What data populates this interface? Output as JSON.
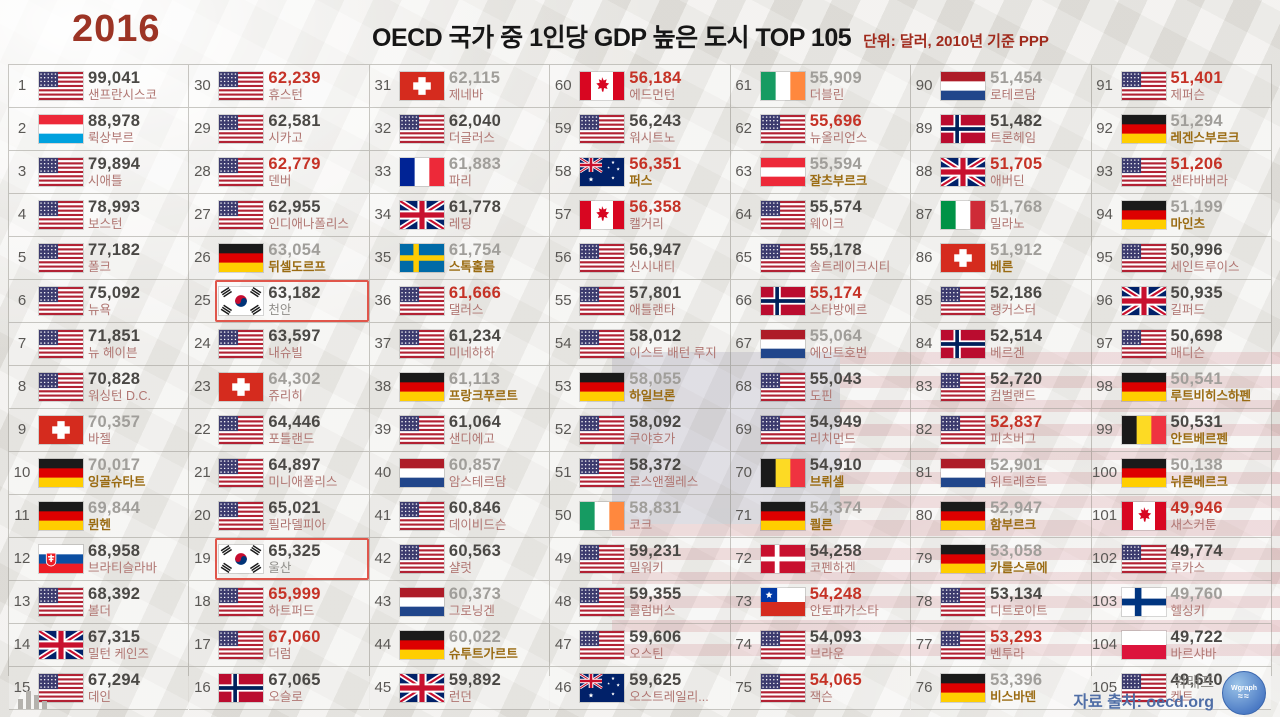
{
  "header": {
    "year": "2016",
    "title": "OECD 국가 중 1인당 GDP 높은 도시 TOP 105",
    "unit": "단위: 달러, 2010년 기준 PPP"
  },
  "footer": {
    "brand": "워래프",
    "source": "자료 출처: oecd.org",
    "logo_text": "Wgraph",
    "chart_icon": "bar-chart-icon"
  },
  "colors": {
    "accent_red": "#c53226",
    "value_dark": "#4a4845",
    "value_gray": "#a09e9a",
    "city_rose": "#b07672",
    "city_bold_gold": "#9a6b12",
    "highlight_box": "#e0564b",
    "year_red": "#9c3425",
    "source_blue": "#4f6ea6"
  },
  "chart_data": {
    "type": "table",
    "title": "OECD 국가 중 1인당 GDP 높은 도시 TOP 105",
    "unit": "단위: 달러, 2010년 기준 PPP",
    "year": "2016",
    "value_color_legend": {
      "dark": "normal",
      "red": "highlighted red",
      "gray": "light gray"
    },
    "columns": [
      [
        {
          "rank": 1,
          "country": "us",
          "value": "99,041",
          "city": "샌프란시스코",
          "value_color": "dark"
        },
        {
          "rank": 2,
          "country": "lu",
          "value": "88,978",
          "city": "뤽상부르",
          "value_color": "dark"
        },
        {
          "rank": 3,
          "country": "us",
          "value": "79,894",
          "city": "시애틀",
          "value_color": "dark"
        },
        {
          "rank": 4,
          "country": "us",
          "value": "78,993",
          "city": "보스턴",
          "value_color": "dark"
        },
        {
          "rank": 5,
          "country": "us",
          "value": "77,182",
          "city": "폴크",
          "value_color": "dark"
        },
        {
          "rank": 6,
          "country": "us",
          "value": "75,092",
          "city": "뉴욕",
          "value_color": "dark"
        },
        {
          "rank": 7,
          "country": "us",
          "value": "71,851",
          "city": "뉴 헤이븐",
          "value_color": "dark"
        },
        {
          "rank": 8,
          "country": "us",
          "value": "70,828",
          "city": "워싱턴 D.C.",
          "value_color": "dark"
        },
        {
          "rank": 9,
          "country": "ch",
          "value": "70,357",
          "city": "바젤",
          "value_color": "gray"
        },
        {
          "rank": 10,
          "country": "de",
          "value": "70,017",
          "city": "잉골슈타트",
          "value_color": "gray",
          "city_bold": true
        },
        {
          "rank": 11,
          "country": "de",
          "value": "69,844",
          "city": "뮌헨",
          "value_color": "gray",
          "city_bold": true
        },
        {
          "rank": 12,
          "country": "sk",
          "value": "68,958",
          "city": "브라티슬라바",
          "value_color": "dark"
        },
        {
          "rank": 13,
          "country": "us",
          "value": "68,392",
          "city": "볼더",
          "value_color": "dark"
        },
        {
          "rank": 14,
          "country": "gb",
          "value": "67,315",
          "city": "밀턴 케인즈",
          "value_color": "dark"
        },
        {
          "rank": 15,
          "country": "us",
          "value": "67,294",
          "city": "데인",
          "value_color": "dark"
        }
      ],
      [
        {
          "rank": 30,
          "country": "us",
          "value": "62,239",
          "city": "휴스턴",
          "value_color": "red"
        },
        {
          "rank": 29,
          "country": "us",
          "value": "62,581",
          "city": "시카고",
          "value_color": "dark"
        },
        {
          "rank": 28,
          "country": "us",
          "value": "62,779",
          "city": "덴버",
          "value_color": "red"
        },
        {
          "rank": 27,
          "country": "us",
          "value": "62,955",
          "city": "인디애나폴리스",
          "value_color": "dark"
        },
        {
          "rank": 26,
          "country": "de",
          "value": "63,054",
          "city": "뒤셀도르프",
          "value_color": "gray",
          "city_bold": true
        },
        {
          "rank": 25,
          "country": "kr",
          "value": "63,182",
          "city": "천안",
          "value_color": "dark",
          "city_gray": true,
          "highlight": true
        },
        {
          "rank": 24,
          "country": "us",
          "value": "63,597",
          "city": "내슈빌",
          "value_color": "dark"
        },
        {
          "rank": 23,
          "country": "ch",
          "value": "64,302",
          "city": "쥬리히",
          "value_color": "gray"
        },
        {
          "rank": 22,
          "country": "us",
          "value": "64,446",
          "city": "포틀랜드",
          "value_color": "dark"
        },
        {
          "rank": 21,
          "country": "us",
          "value": "64,897",
          "city": "미니애폴리스",
          "value_color": "dark"
        },
        {
          "rank": 20,
          "country": "us",
          "value": "65,021",
          "city": "필라델피아",
          "value_color": "dark"
        },
        {
          "rank": 19,
          "country": "kr",
          "value": "65,325",
          "city": "울산",
          "value_color": "dark",
          "city_gray": true,
          "highlight": true
        },
        {
          "rank": 18,
          "country": "us",
          "value": "65,999",
          "city": "하트퍼드",
          "value_color": "red"
        },
        {
          "rank": 17,
          "country": "us",
          "value": "67,060",
          "city": "더럼",
          "value_color": "red"
        },
        {
          "rank": 16,
          "country": "no",
          "value": "67,065",
          "city": "오슬로",
          "value_color": "dark"
        }
      ],
      [
        {
          "rank": 31,
          "country": "ch",
          "value": "62,115",
          "city": "제네바",
          "value_color": "gray"
        },
        {
          "rank": 32,
          "country": "us",
          "value": "62,040",
          "city": "더글러스",
          "value_color": "dark"
        },
        {
          "rank": 33,
          "country": "fr",
          "value": "61,883",
          "city": "파리",
          "value_color": "gray"
        },
        {
          "rank": 34,
          "country": "gb",
          "value": "61,778",
          "city": "레딩",
          "value_color": "dark"
        },
        {
          "rank": 35,
          "country": "se",
          "value": "61,754",
          "city": "스톡홀름",
          "value_color": "gray",
          "city_bold": true
        },
        {
          "rank": 36,
          "country": "us",
          "value": "61,666",
          "city": "댈러스",
          "value_color": "red"
        },
        {
          "rank": 37,
          "country": "us",
          "value": "61,234",
          "city": "미네하하",
          "value_color": "dark"
        },
        {
          "rank": 38,
          "country": "de",
          "value": "61,113",
          "city": "프랑크푸르트",
          "value_color": "gray",
          "city_bold": true
        },
        {
          "rank": 39,
          "country": "us",
          "value": "61,064",
          "city": "샌디에고",
          "value_color": "dark"
        },
        {
          "rank": 40,
          "country": "nl",
          "value": "60,857",
          "city": "암스테르담",
          "value_color": "gray"
        },
        {
          "rank": 41,
          "country": "us",
          "value": "60,846",
          "city": "데이비드슨",
          "value_color": "dark"
        },
        {
          "rank": 42,
          "country": "us",
          "value": "60,563",
          "city": "샬럿",
          "value_color": "dark"
        },
        {
          "rank": 43,
          "country": "nl",
          "value": "60,373",
          "city": "그로닝겐",
          "value_color": "gray"
        },
        {
          "rank": 44,
          "country": "de",
          "value": "60,022",
          "city": "슈투트가르트",
          "value_color": "gray",
          "city_bold": true
        },
        {
          "rank": 45,
          "country": "gb",
          "value": "59,892",
          "city": "런던",
          "value_color": "dark"
        }
      ],
      [
        {
          "rank": 60,
          "country": "ca",
          "value": "56,184",
          "city": "에드먼턴",
          "value_color": "red"
        },
        {
          "rank": 59,
          "country": "us",
          "value": "56,243",
          "city": "워시트노",
          "value_color": "dark"
        },
        {
          "rank": 58,
          "country": "au",
          "value": "56,351",
          "city": "퍼스",
          "value_color": "red",
          "city_bold": true
        },
        {
          "rank": 57,
          "country": "ca",
          "value": "56,358",
          "city": "캘거리",
          "value_color": "red"
        },
        {
          "rank": 56,
          "country": "us",
          "value": "56,947",
          "city": "신시내티",
          "value_color": "dark"
        },
        {
          "rank": 55,
          "country": "us",
          "value": "57,801",
          "city": "애틀랜타",
          "value_color": "dark"
        },
        {
          "rank": 54,
          "country": "us",
          "value": "58,012",
          "city": "이스트 배턴 루지",
          "value_color": "dark"
        },
        {
          "rank": 53,
          "country": "de",
          "value": "58,055",
          "city": "하일브론",
          "value_color": "gray",
          "city_bold": true
        },
        {
          "rank": 52,
          "country": "us",
          "value": "58,092",
          "city": "쿠야호가",
          "value_color": "dark"
        },
        {
          "rank": 51,
          "country": "us",
          "value": "58,372",
          "city": "로스앤젤레스",
          "value_color": "dark"
        },
        {
          "rank": 50,
          "country": "ie",
          "value": "58,831",
          "city": "코크",
          "value_color": "gray"
        },
        {
          "rank": 49,
          "country": "us",
          "value": "59,231",
          "city": "밀워키",
          "value_color": "dark"
        },
        {
          "rank": 48,
          "country": "us",
          "value": "59,355",
          "city": "콜럼버스",
          "value_color": "dark"
        },
        {
          "rank": 47,
          "country": "us",
          "value": "59,606",
          "city": "오스틴",
          "value_color": "dark"
        },
        {
          "rank": 46,
          "country": "au",
          "value": "59,625",
          "city": "오스트레일리...",
          "value_color": "dark"
        }
      ],
      [
        {
          "rank": 61,
          "country": "ie",
          "value": "55,909",
          "city": "더블린",
          "value_color": "gray"
        },
        {
          "rank": 62,
          "country": "us",
          "value": "55,696",
          "city": "뉴올리언스",
          "value_color": "red"
        },
        {
          "rank": 63,
          "country": "at",
          "value": "55,594",
          "city": "잘츠부르크",
          "value_color": "gray",
          "city_bold": true
        },
        {
          "rank": 64,
          "country": "us",
          "value": "55,574",
          "city": "웨이크",
          "value_color": "dark"
        },
        {
          "rank": 65,
          "country": "us",
          "value": "55,178",
          "city": "솔트레이크시티",
          "value_color": "dark"
        },
        {
          "rank": 66,
          "country": "no",
          "value": "55,174",
          "city": "스타방에르",
          "value_color": "red"
        },
        {
          "rank": 67,
          "country": "nl",
          "value": "55,064",
          "city": "에인트호번",
          "value_color": "gray"
        },
        {
          "rank": 68,
          "country": "us",
          "value": "55,043",
          "city": "도핀",
          "value_color": "dark"
        },
        {
          "rank": 69,
          "country": "us",
          "value": "54,949",
          "city": "리치먼드",
          "value_color": "dark"
        },
        {
          "rank": 70,
          "country": "be",
          "value": "54,910",
          "city": "브뤼셀",
          "value_color": "dark",
          "city_bold": true
        },
        {
          "rank": 71,
          "country": "de",
          "value": "54,374",
          "city": "쾰른",
          "value_color": "gray",
          "city_bold": true
        },
        {
          "rank": 72,
          "country": "dk",
          "value": "54,258",
          "city": "코펜하겐",
          "value_color": "dark"
        },
        {
          "rank": 73,
          "country": "cl",
          "value": "54,248",
          "city": "안토파가스타",
          "value_color": "red"
        },
        {
          "rank": 74,
          "country": "us",
          "value": "54,093",
          "city": "브라운",
          "value_color": "dark"
        },
        {
          "rank": 75,
          "country": "us",
          "value": "54,065",
          "city": "잭슨",
          "value_color": "red"
        }
      ],
      [
        {
          "rank": 90,
          "country": "nl",
          "value": "51,454",
          "city": "로테르담",
          "value_color": "gray"
        },
        {
          "rank": 89,
          "country": "no",
          "value": "51,482",
          "city": "트론헤임",
          "value_color": "dark"
        },
        {
          "rank": 88,
          "country": "gb",
          "value": "51,705",
          "city": "애버딘",
          "value_color": "red"
        },
        {
          "rank": 87,
          "country": "it",
          "value": "51,768",
          "city": "밀라노",
          "value_color": "gray"
        },
        {
          "rank": 86,
          "country": "ch",
          "value": "51,912",
          "city": "베른",
          "value_color": "gray",
          "city_bold": true
        },
        {
          "rank": 85,
          "country": "us",
          "value": "52,186",
          "city": "랭커스터",
          "value_color": "dark"
        },
        {
          "rank": 84,
          "country": "no",
          "value": "52,514",
          "city": "베르겐",
          "value_color": "dark"
        },
        {
          "rank": 83,
          "country": "us",
          "value": "52,720",
          "city": "컴벌랜드",
          "value_color": "dark"
        },
        {
          "rank": 82,
          "country": "us",
          "value": "52,837",
          "city": "피츠버그",
          "value_color": "red"
        },
        {
          "rank": 81,
          "country": "nl",
          "value": "52,901",
          "city": "위트레흐트",
          "value_color": "gray"
        },
        {
          "rank": 80,
          "country": "de",
          "value": "52,947",
          "city": "함부르크",
          "value_color": "gray",
          "city_bold": true
        },
        {
          "rank": 79,
          "country": "de",
          "value": "53,058",
          "city": "카를스루에",
          "value_color": "gray",
          "city_bold": true
        },
        {
          "rank": 78,
          "country": "us",
          "value": "53,134",
          "city": "디트로이트",
          "value_color": "dark"
        },
        {
          "rank": 77,
          "country": "us",
          "value": "53,293",
          "city": "벤투라",
          "value_color": "red"
        },
        {
          "rank": 76,
          "country": "de",
          "value": "53,396",
          "city": "비스바덴",
          "value_color": "gray",
          "city_bold": true
        }
      ],
      [
        {
          "rank": 91,
          "country": "us",
          "value": "51,401",
          "city": "제퍼슨",
          "value_color": "red"
        },
        {
          "rank": 92,
          "country": "de",
          "value": "51,294",
          "city": "레겐스부르크",
          "value_color": "gray",
          "city_bold": true
        },
        {
          "rank": 93,
          "country": "us",
          "value": "51,206",
          "city": "샌타바버라",
          "value_color": "red"
        },
        {
          "rank": 94,
          "country": "de",
          "value": "51,199",
          "city": "마인츠",
          "value_color": "gray",
          "city_bold": true
        },
        {
          "rank": 95,
          "country": "us",
          "value": "50,996",
          "city": "세인트루이스",
          "value_color": "dark"
        },
        {
          "rank": 96,
          "country": "gb",
          "value": "50,935",
          "city": "길퍼드",
          "value_color": "dark"
        },
        {
          "rank": 97,
          "country": "us",
          "value": "50,698",
          "city": "매디슨",
          "value_color": "dark"
        },
        {
          "rank": 98,
          "country": "de",
          "value": "50,541",
          "city": "루트비히스하펜",
          "value_color": "gray",
          "city_bold": true
        },
        {
          "rank": 99,
          "country": "be",
          "value": "50,531",
          "city": "안트베르펜",
          "value_color": "dark",
          "city_bold": true
        },
        {
          "rank": 100,
          "country": "de",
          "value": "50,138",
          "city": "뉘른베르크",
          "value_color": "gray",
          "city_bold": true
        },
        {
          "rank": 101,
          "country": "ca",
          "value": "49,946",
          "city": "새스커툰",
          "value_color": "red"
        },
        {
          "rank": 102,
          "country": "us",
          "value": "49,774",
          "city": "루카스",
          "value_color": "dark"
        },
        {
          "rank": 103,
          "country": "fi",
          "value": "49,760",
          "city": "헬싱키",
          "value_color": "gray"
        },
        {
          "rank": 104,
          "country": "pl",
          "value": "49,722",
          "city": "바르샤바",
          "value_color": "dark"
        },
        {
          "rank": 105,
          "country": "us",
          "value": "49,640",
          "city": "켄트",
          "value_color": "dark"
        }
      ]
    ]
  }
}
